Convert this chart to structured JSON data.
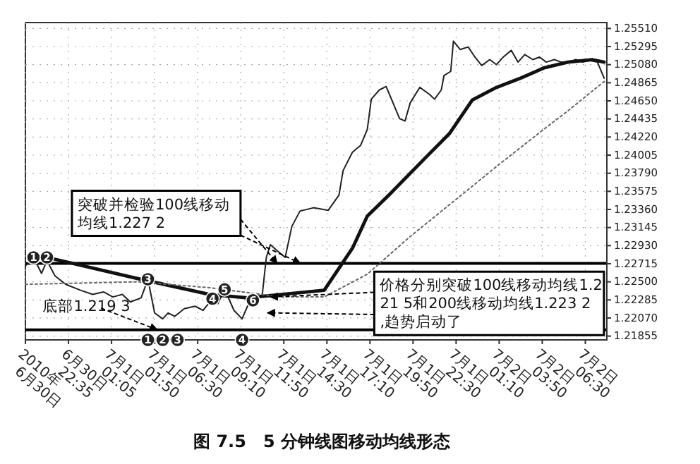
{
  "chart_data": {
    "type": "line",
    "title": "图 7.5　5 分钟线图移动均线形态",
    "xlim": [
      "2010-06-30T19:50",
      "2010-07-02T07:50"
    ],
    "xticks": [
      {
        "value": "2010-06-30T19:50",
        "label": "2010年\n6月30日"
      },
      {
        "value": "2010-06-30T22:30",
        "label": "6月30日\n22:35"
      },
      {
        "value": "2010-07-01T01:10",
        "label": "7月1日\n01:05"
      },
      {
        "value": "2010-07-01T03:50",
        "label": "7月1日\n01:50"
      },
      {
        "value": "2010-07-01T06:30",
        "label": "7月1日\n06:30"
      },
      {
        "value": "2010-07-01T09:10",
        "label": "7月1日\n09:10"
      },
      {
        "value": "2010-07-01T11:50",
        "label": "7月1日\n11:50"
      },
      {
        "value": "2010-07-01T14:30",
        "label": "7月1日\n14:30"
      },
      {
        "value": "2010-07-01T17:10",
        "label": "7月1日\n17:10"
      },
      {
        "value": "2010-07-01T19:50",
        "label": "7月1日\n19:50"
      },
      {
        "value": "2010-07-01T22:30",
        "label": "7月1日\n22:30"
      },
      {
        "value": "2010-07-02T01:10",
        "label": "7月2日\n01:10"
      },
      {
        "value": "2010-07-02T03:50",
        "label": "7月2日\n03:50"
      },
      {
        "value": "2010-07-02T06:30",
        "label": "7月2日\n06:30"
      }
    ],
    "ylim": [
      1.2181,
      1.2558
    ],
    "yticks": [
      {
        "value": 1.21855,
        "label": "1.21855"
      },
      {
        "value": 1.2207,
        "label": "1.22070"
      },
      {
        "value": 1.22285,
        "label": "1.22285"
      },
      {
        "value": 1.225,
        "label": "1.22500"
      },
      {
        "value": 1.22715,
        "label": "1.22715"
      },
      {
        "value": 1.2293,
        "label": "1.22930"
      },
      {
        "value": 1.23145,
        "label": "1.23145"
      },
      {
        "value": 1.2336,
        "label": "1.23360"
      },
      {
        "value": 1.23575,
        "label": "1.23575"
      },
      {
        "value": 1.2379,
        "label": "1.23790"
      },
      {
        "value": 1.24005,
        "label": "1.24005"
      },
      {
        "value": 1.2422,
        "label": "1.24220"
      },
      {
        "value": 1.24435,
        "label": "1.24435"
      },
      {
        "value": 1.2465,
        "label": "1.24650"
      },
      {
        "value": 1.24865,
        "label": "1.24865"
      },
      {
        "value": 1.2508,
        "label": "1.25080"
      },
      {
        "value": 1.25295,
        "label": "1.25295"
      },
      {
        "value": 1.2551,
        "label": "1.25510"
      }
    ],
    "grid": true,
    "marker": "none",
    "series": [
      {
        "color": "#222222",
        "line_style": "solid",
        "x": [
          "2010-06-30T19:50",
          "2010-06-30T20:20",
          "2010-06-30T20:50",
          "2010-06-30T21:10",
          "2010-06-30T21:40",
          "2010-06-30T22:20",
          "2010-06-30T23:15",
          "2010-07-01T00:00",
          "2010-07-01T00:40",
          "2010-07-01T01:15",
          "2010-07-01T01:50",
          "2010-07-01T02:20",
          "2010-07-01T03:00",
          "2010-07-01T03:25",
          "2010-07-01T03:50",
          "2010-07-01T04:20",
          "2010-07-01T04:40",
          "2010-07-01T05:05",
          "2010-07-01T05:40",
          "2010-07-01T06:20",
          "2010-07-01T06:50",
          "2010-07-01T07:15",
          "2010-07-01T07:25",
          "2010-07-01T07:45",
          "2010-07-01T08:10",
          "2010-07-01T08:45",
          "2010-07-01T09:15",
          "2010-07-01T09:35",
          "2010-07-01T09:55",
          "2010-07-01T10:30",
          "2010-07-01T10:45",
          "2010-07-01T11:00",
          "2010-07-01T11:25",
          "2010-07-01T11:55",
          "2010-07-01T12:20",
          "2010-07-01T12:50",
          "2010-07-01T13:40",
          "2010-07-01T14:35",
          "2010-07-01T15:15",
          "2010-07-01T15:30",
          "2010-07-01T16:05",
          "2010-07-01T16:35",
          "2010-07-01T17:00",
          "2010-07-01T17:15",
          "2010-07-01T17:45",
          "2010-07-01T18:10",
          "2010-07-01T18:35",
          "2010-07-01T19:00",
          "2010-07-01T19:20",
          "2010-07-01T19:40",
          "2010-07-01T20:15",
          "2010-07-01T20:50",
          "2010-07-01T21:10",
          "2010-07-01T21:35",
          "2010-07-01T21:45",
          "2010-07-01T22:10",
          "2010-07-01T22:20",
          "2010-07-01T22:45",
          "2010-07-01T23:15",
          "2010-07-01T23:40",
          "2010-07-02T00:05",
          "2010-07-02T00:35",
          "2010-07-02T01:00",
          "2010-07-02T01:25",
          "2010-07-02T01:55",
          "2010-07-02T02:20",
          "2010-07-02T02:45",
          "2010-07-02T03:15",
          "2010-07-02T03:40",
          "2010-07-02T04:05",
          "2010-07-02T04:35",
          "2010-07-02T05:00",
          "2010-07-02T05:25",
          "2010-07-02T05:55",
          "2010-07-02T06:20",
          "2010-07-02T06:45",
          "2010-07-02T07:15",
          "2010-07-02T07:40"
        ],
        "values": [
          1.2269,
          1.2279,
          1.226,
          1.2275,
          1.2257,
          1.2247,
          1.224,
          1.2235,
          1.2238,
          1.2232,
          1.2235,
          1.2226,
          1.2231,
          1.2253,
          1.2213,
          1.2206,
          1.2213,
          1.2209,
          1.2218,
          1.2221,
          1.2216,
          1.2226,
          1.2232,
          1.2224,
          1.2241,
          1.2216,
          1.2206,
          1.2221,
          1.2228,
          1.2235,
          1.2279,
          1.2294,
          1.2287,
          1.2279,
          1.2316,
          1.2334,
          1.2338,
          1.2335,
          1.2353,
          1.2382,
          1.2404,
          1.2412,
          1.2431,
          1.2467,
          1.2478,
          1.2482,
          1.2463,
          1.2444,
          1.2441,
          1.2463,
          1.2481,
          1.2473,
          1.2467,
          1.2478,
          1.2495,
          1.25,
          1.2536,
          1.2526,
          1.2529,
          1.2517,
          1.2507,
          1.2514,
          1.2508,
          1.2517,
          1.2525,
          1.2511,
          1.252,
          1.2514,
          1.2517,
          1.2511,
          1.2514,
          1.2511,
          1.2511,
          1.2514,
          1.2511,
          1.2513,
          1.2511,
          1.2492
        ]
      },
      {
        "color": "#111111",
        "line_style": "solid",
        "x": [
          "2010-06-30T21:10",
          "2010-07-01T02:45",
          "2010-07-01T07:15",
          "2010-07-01T09:35",
          "2010-07-01T11:40",
          "2010-07-01T14:20",
          "2010-07-01T16:05",
          "2010-07-01T17:00",
          "2010-07-01T18:20",
          "2010-07-01T20:35",
          "2010-07-01T22:05",
          "2010-07-01T23:30",
          "2010-07-02T01:00",
          "2010-07-02T02:30",
          "2010-07-02T03:55",
          "2010-07-02T05:25",
          "2010-07-02T06:55",
          "2010-07-02T07:40"
        ],
        "values": [
          1.2279,
          1.2254,
          1.2235,
          1.2231,
          1.2235,
          1.224,
          1.229,
          1.2328,
          1.2353,
          1.2397,
          1.2426,
          1.2466,
          1.2481,
          1.2492,
          1.2504,
          1.2511,
          1.2514,
          1.2511
        ]
      },
      {
        "color": "#666666",
        "line_style": "dotted",
        "x": [
          "2010-06-30T19:50",
          "2010-07-01T02:45",
          "2010-07-01T07:15",
          "2010-07-01T11:40",
          "2010-07-01T14:20",
          "2010-07-01T17:00",
          "2010-07-01T19:40",
          "2010-07-01T23:05",
          "2010-07-02T01:00",
          "2010-07-02T03:55",
          "2010-07-02T05:25",
          "2010-07-02T07:40"
        ],
        "values": [
          1.2247,
          1.225,
          1.2243,
          1.2232,
          1.2232,
          1.2259,
          1.2304,
          1.2357,
          1.2387,
          1.2431,
          1.2453,
          1.2488
        ]
      }
    ],
    "ref_lines": [
      {
        "axis": "y",
        "value": 1.2272,
        "color": "#000000"
      },
      {
        "axis": "y",
        "value": 1.2193,
        "color": "#000000"
      }
    ],
    "annotations": [
      {
        "text": "突破并检验100线移动均线1.227 2",
        "x": "2010-07-01T11:25",
        "y": 1.2272
      },
      {
        "text": "底部1.219 3",
        "x": "2010-07-01T04:00",
        "y": 1.2193
      },
      {
        "text": "价格分别突破100线移动均线1.221 5和200线移动均线1.223 2,趋势启动了",
        "x": "2010-07-01T11:00",
        "y": 1.2232
      },
      {
        "text": "1",
        "x": "2010-06-30T20:20",
        "y": 1.2279
      },
      {
        "text": "2",
        "x": "2010-06-30T21:10",
        "y": 1.2279
      },
      {
        "text": "3",
        "x": "2010-07-01T03:25",
        "y": 1.2253
      },
      {
        "text": "4",
        "x": "2010-07-01T07:25",
        "y": 1.223
      },
      {
        "text": "5",
        "x": "2010-07-01T08:10",
        "y": 1.2241
      },
      {
        "text": "6",
        "x": "2010-07-01T09:55",
        "y": 1.2228
      },
      {
        "text": "1",
        "x": "2010-07-01T03:25",
        "y": 1.2181
      },
      {
        "text": "2",
        "x": "2010-07-01T04:20",
        "y": 1.2181
      },
      {
        "text": "3",
        "x": "2010-07-01T05:15",
        "y": 1.2181
      },
      {
        "text": "4",
        "x": "2010-07-01T09:15",
        "y": 1.2181
      }
    ]
  }
}
